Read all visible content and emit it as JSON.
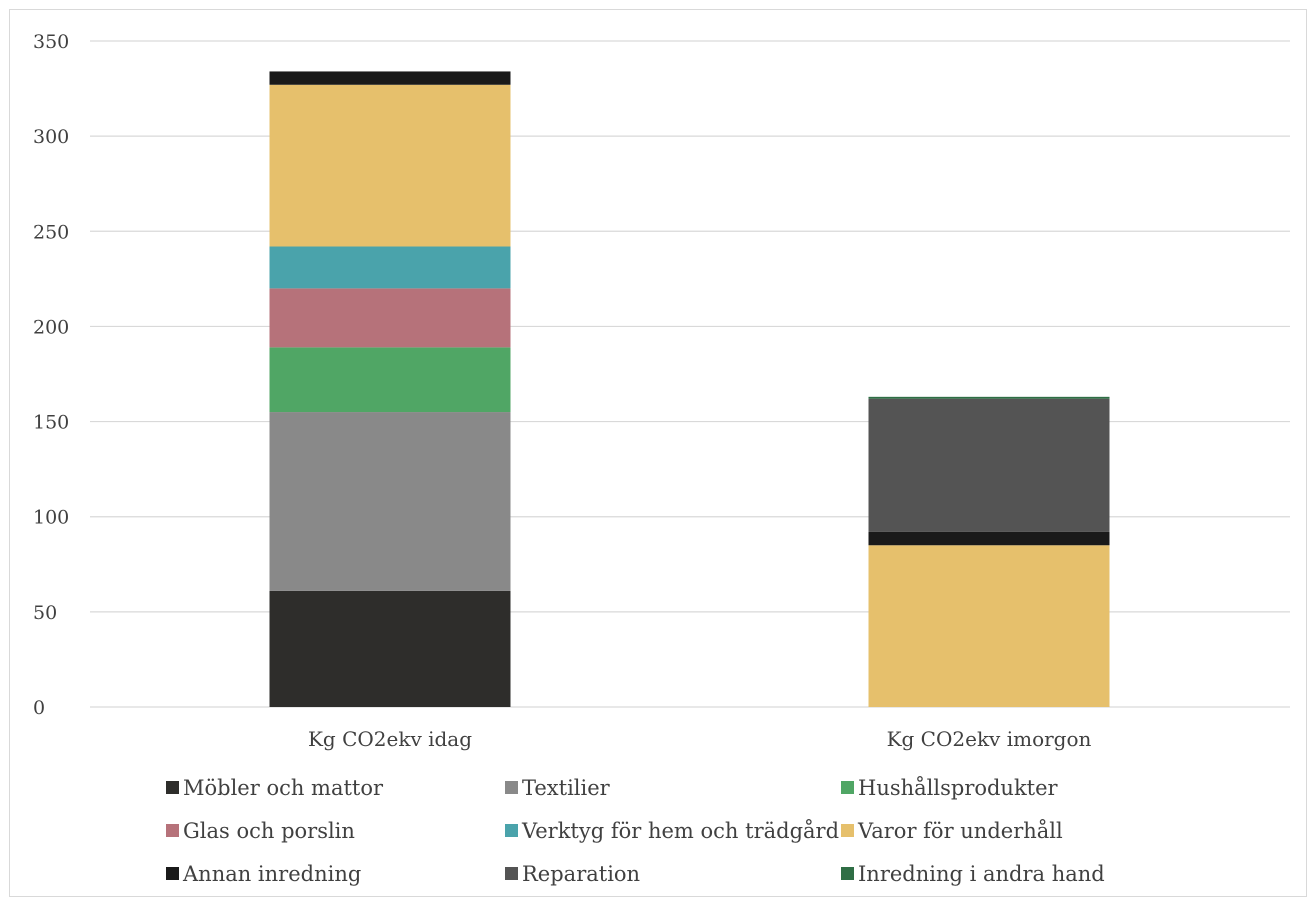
{
  "chart_data": {
    "type": "bar",
    "stacked": true,
    "categories": [
      "Kg CO2ekv idag",
      "Kg CO2ekv imorgon"
    ],
    "ylim": [
      0,
      350
    ],
    "yticks": [
      0,
      50,
      100,
      150,
      200,
      250,
      300,
      350
    ],
    "grid": true,
    "legend_position": "bottom",
    "series": [
      {
        "name": "Möbler och mattor",
        "color": "#2e2d2b",
        "values": [
          61,
          0
        ]
      },
      {
        "name": "Textilier",
        "color": "#898989",
        "values": [
          94,
          0
        ]
      },
      {
        "name": "Hushållsprodukter",
        "color": "#50a665",
        "values": [
          34,
          0
        ]
      },
      {
        "name": "Glas och porslin",
        "color": "#b6727a",
        "values": [
          31,
          0
        ]
      },
      {
        "name": "Verktyg för hem och trädgård",
        "color": "#4aa3ab",
        "values": [
          22,
          0
        ]
      },
      {
        "name": "Varor för underhåll",
        "color": "#e6c06c",
        "values": [
          85,
          85
        ]
      },
      {
        "name": "Annan inredning",
        "color": "#1a1a1a",
        "values": [
          7,
          7
        ]
      },
      {
        "name": "Reparation",
        "color": "#545454",
        "values": [
          0,
          70
        ]
      },
      {
        "name": "Inredning i andra hand",
        "color": "#2f6e45",
        "values": [
          0,
          1
        ]
      }
    ]
  }
}
